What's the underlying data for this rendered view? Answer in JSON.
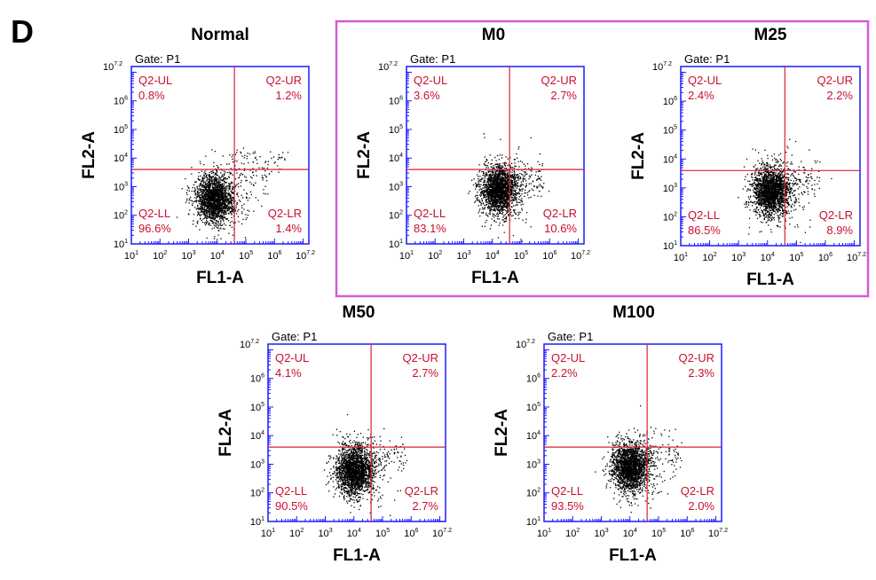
{
  "figure_label": "D",
  "highlight_color": "#d45ad8",
  "chart_data": [
    {
      "type": "scatter",
      "title": "Normal",
      "gate": "Gate: P1",
      "xlabel": "FL1-A",
      "ylabel": "FL2-A",
      "xlim_log10": [
        1,
        7.2
      ],
      "ylim_log10": [
        1,
        7.2
      ],
      "tick_labels": [
        "1",
        "2",
        "3",
        "4",
        "5",
        "6",
        "7.2"
      ],
      "quadrant_gate_log10": {
        "x": 4.6,
        "y": 3.6
      },
      "quadrants": {
        "UL": {
          "name": "Q2-UL",
          "value": "0.8%"
        },
        "UR": {
          "name": "Q2-UR",
          "value": "1.2%"
        },
        "LL": {
          "name": "Q2-LL",
          "value": "96.6%"
        },
        "LR": {
          "name": "Q2-LR",
          "value": "1.4%"
        }
      },
      "population_center_log10": {
        "x": 3.9,
        "y": 2.6
      }
    },
    {
      "type": "scatter",
      "title": "M0",
      "gate": "Gate: P1",
      "xlabel": "FL1-A",
      "ylabel": "FL2-A",
      "xlim_log10": [
        1,
        7.2
      ],
      "ylim_log10": [
        1,
        7.2
      ],
      "tick_labels": [
        "1",
        "2",
        "3",
        "4",
        "5",
        "6",
        "7.2"
      ],
      "quadrant_gate_log10": {
        "x": 4.6,
        "y": 3.6
      },
      "quadrants": {
        "UL": {
          "name": "Q2-UL",
          "value": "3.6%"
        },
        "UR": {
          "name": "Q2-UR",
          "value": "2.7%"
        },
        "LL": {
          "name": "Q2-LL",
          "value": "83.1%"
        },
        "LR": {
          "name": "Q2-LR",
          "value": "10.6%"
        }
      },
      "population_center_log10": {
        "x": 4.2,
        "y": 2.9
      }
    },
    {
      "type": "scatter",
      "title": "M25",
      "gate": "Gate: P1",
      "xlabel": "FL1-A",
      "ylabel": "FL2-A",
      "xlim_log10": [
        1,
        7.2
      ],
      "ylim_log10": [
        1,
        7.2
      ],
      "tick_labels": [
        "1",
        "2",
        "3",
        "4",
        "5",
        "6",
        "7.2"
      ],
      "quadrant_gate_log10": {
        "x": 4.6,
        "y": 3.6
      },
      "quadrants": {
        "UL": {
          "name": "Q2-UL",
          "value": "2.4%"
        },
        "UR": {
          "name": "Q2-UR",
          "value": "2.2%"
        },
        "LL": {
          "name": "Q2-LL",
          "value": "86.5%"
        },
        "LR": {
          "name": "Q2-LR",
          "value": "8.9%"
        }
      },
      "population_center_log10": {
        "x": 4.1,
        "y": 2.9
      }
    },
    {
      "type": "scatter",
      "title": "M50",
      "gate": "Gate: P1",
      "xlabel": "FL1-A",
      "ylabel": "FL2-A",
      "xlim_log10": [
        1,
        7.2
      ],
      "ylim_log10": [
        1,
        7.2
      ],
      "tick_labels": [
        "1",
        "2",
        "3",
        "4",
        "5",
        "6",
        "7.2"
      ],
      "quadrant_gate_log10": {
        "x": 4.6,
        "y": 3.6
      },
      "quadrants": {
        "UL": {
          "name": "Q2-UL",
          "value": "4.1%"
        },
        "UR": {
          "name": "Q2-UR",
          "value": "2.7%"
        },
        "LL": {
          "name": "Q2-LL",
          "value": "90.5%"
        },
        "LR": {
          "name": "Q2-LR",
          "value": "2.7%"
        }
      },
      "population_center_log10": {
        "x": 4.0,
        "y": 2.8
      }
    },
    {
      "type": "scatter",
      "title": "M100",
      "gate": "Gate: P1",
      "xlabel": "FL1-A",
      "ylabel": "FL2-A",
      "xlim_log10": [
        1,
        7.2
      ],
      "ylim_log10": [
        1,
        7.2
      ],
      "tick_labels": [
        "1",
        "2",
        "3",
        "4",
        "5",
        "6",
        "7.2"
      ],
      "quadrant_gate_log10": {
        "x": 4.6,
        "y": 3.6
      },
      "quadrants": {
        "UL": {
          "name": "Q2-UL",
          "value": "2.2%"
        },
        "UR": {
          "name": "Q2-UR",
          "value": "2.3%"
        },
        "LL": {
          "name": "Q2-LL",
          "value": "93.5%"
        },
        "LR": {
          "name": "Q2-LR",
          "value": "2.0%"
        }
      },
      "population_center_log10": {
        "x": 4.0,
        "y": 2.9
      }
    }
  ]
}
